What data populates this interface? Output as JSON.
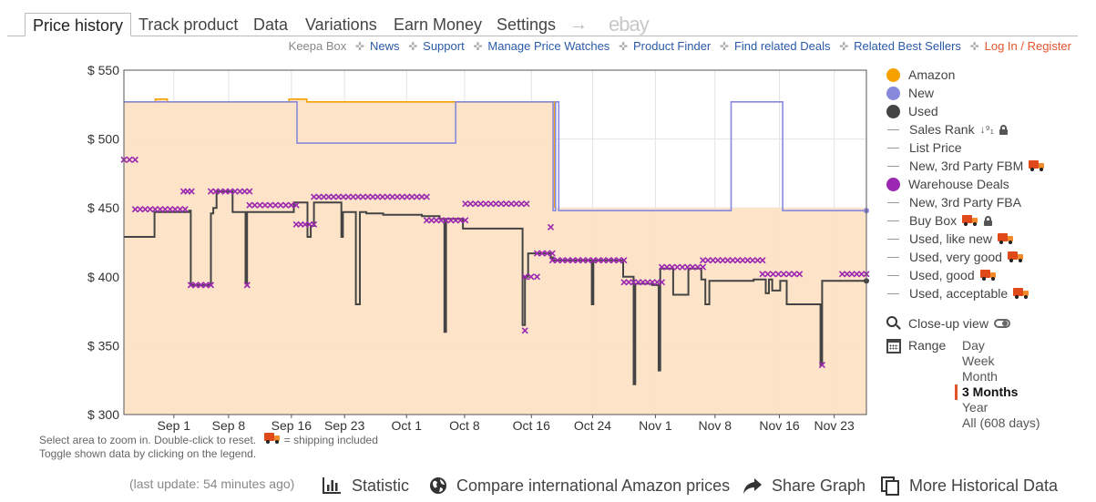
{
  "tabs": [
    "Price history",
    "Track product",
    "Data",
    "Variations",
    "Earn Money",
    "Settings"
  ],
  "tab_arrow": "→",
  "tab_ebay": "ebay",
  "subnav": {
    "keepa_box": "Keepa Box",
    "links": [
      "News",
      "Support",
      "Manage Price Watches",
      "Product Finder",
      "Find related Deals",
      "Related Best Sellers"
    ],
    "login": "Log In / Register"
  },
  "hints": {
    "line1_a": "Select area to zoom in. Double-click to reset.",
    "line1_b": "= shipping included",
    "line2": "Toggle shown data by clicking on the legend."
  },
  "legend": {
    "items": [
      {
        "label": "Amazon",
        "kind": "dot",
        "color": "#f5a200"
      },
      {
        "label": "New",
        "kind": "dot",
        "color": "#8888dd"
      },
      {
        "label": "Used",
        "kind": "dot",
        "color": "#444444"
      },
      {
        "label": "Sales Rank",
        "kind": "line",
        "sort": true,
        "lock": true
      },
      {
        "label": "List Price",
        "kind": "line"
      },
      {
        "label": "New, 3rd Party FBM",
        "kind": "line",
        "truck": true
      },
      {
        "label": "Warehouse Deals",
        "kind": "dot",
        "color": "#9c27b0"
      },
      {
        "label": "New, 3rd Party FBA",
        "kind": "line"
      },
      {
        "label": "Buy Box",
        "kind": "line",
        "truck": true,
        "lock": true
      },
      {
        "label": "Used, like new",
        "kind": "line",
        "truck": true
      },
      {
        "label": "Used, very good",
        "kind": "line",
        "truck": true
      },
      {
        "label": "Used, good",
        "kind": "line",
        "truck": true
      },
      {
        "label": "Used, acceptable",
        "kind": "line",
        "truck": true
      }
    ]
  },
  "closeup_label": "Close-up view",
  "range": {
    "label": "Range",
    "options": [
      "Day",
      "Week",
      "Month",
      "3 Months",
      "Year",
      "All (608 days)"
    ],
    "active": "3 Months"
  },
  "footer": {
    "last_update": "(last update: 54 minutes ago)",
    "statistic": "Statistic",
    "compare": "Compare international Amazon prices",
    "share": "Share Graph",
    "more": "More Historical Data"
  },
  "chart_data": {
    "type": "line",
    "y_ticks": [
      "$ 550",
      "$ 500",
      "$ 450",
      "$ 400",
      "$ 350",
      "$ 300"
    ],
    "ylim": [
      300,
      550
    ],
    "x_ticks": [
      "Sep 1",
      "Sep 8",
      "Sep 16",
      "Sep 23",
      "Oct 1",
      "Oct 8",
      "Oct 16",
      "Oct 24",
      "Nov 1",
      "Nov 8",
      "Nov 16",
      "Nov 23"
    ],
    "x_tick_days": [
      6.2,
      13,
      20.8,
      27.4,
      35.1,
      42.3,
      50.6,
      58.2,
      66,
      73.4,
      81.4,
      88.2
    ],
    "xlim": [
      0,
      92.2
    ],
    "grid": true,
    "series": [
      {
        "name": "Amazon",
        "color": "#f5a200",
        "fill": "#fde3c6",
        "points": [
          [
            0,
            527
          ],
          [
            3.9,
            527
          ],
          [
            3.9,
            529
          ],
          [
            5.4,
            529
          ],
          [
            5.4,
            527
          ],
          [
            20.5,
            527
          ],
          [
            20.5,
            529
          ],
          [
            22.7,
            529
          ],
          [
            22.7,
            527
          ],
          [
            53.5,
            527
          ],
          [
            53.5,
            450
          ]
        ]
      },
      {
        "name": "New",
        "color": "#8888dd",
        "points": [
          [
            0,
            527
          ],
          [
            21.5,
            527
          ],
          [
            21.5,
            497
          ],
          [
            41.2,
            497
          ],
          [
            41.2,
            527
          ],
          [
            53.3,
            527
          ],
          [
            53.3,
            448
          ],
          [
            53.6,
            448
          ],
          [
            53.6,
            527
          ],
          [
            54,
            527
          ],
          [
            54,
            448
          ],
          [
            75.4,
            448
          ],
          [
            75.4,
            527
          ],
          [
            81.8,
            527
          ],
          [
            81.8,
            448
          ],
          [
            92.2,
            448
          ]
        ]
      },
      {
        "name": "Used",
        "color": "#444444",
        "points": [
          [
            0,
            429
          ],
          [
            3.8,
            429
          ],
          [
            3.8,
            447
          ],
          [
            8.1,
            447
          ],
          [
            8.1,
            448
          ],
          [
            8.3,
            448
          ],
          [
            8.3,
            394
          ],
          [
            10.8,
            394
          ],
          [
            10.8,
            446
          ],
          [
            11.1,
            446
          ],
          [
            11.1,
            450
          ],
          [
            11.5,
            450
          ],
          [
            11.5,
            462
          ],
          [
            13.5,
            462
          ],
          [
            13.5,
            447
          ],
          [
            15.1,
            447
          ],
          [
            15.1,
            395
          ],
          [
            15.3,
            395
          ],
          [
            15.3,
            447
          ],
          [
            21.1,
            447
          ],
          [
            21.1,
            454
          ],
          [
            22.8,
            454
          ],
          [
            22.8,
            429
          ],
          [
            23.2,
            429
          ],
          [
            23.2,
            437
          ],
          [
            23.6,
            437
          ],
          [
            23.6,
            454
          ],
          [
            27,
            454
          ],
          [
            27,
            429
          ],
          [
            27.2,
            429
          ],
          [
            27.2,
            447
          ],
          [
            28.8,
            447
          ],
          [
            28.8,
            380
          ],
          [
            29.3,
            380
          ],
          [
            29.3,
            447
          ],
          [
            30.1,
            447
          ],
          [
            30.1,
            446
          ],
          [
            32.2,
            446
          ],
          [
            32.2,
            445
          ],
          [
            37,
            445
          ],
          [
            37,
            444
          ],
          [
            39.2,
            444
          ],
          [
            39.2,
            442
          ],
          [
            39.8,
            442
          ],
          [
            39.8,
            360
          ],
          [
            40,
            360
          ],
          [
            40,
            442
          ],
          [
            42.1,
            442
          ],
          [
            42.1,
            435
          ],
          [
            49.5,
            435
          ],
          [
            49.5,
            365
          ],
          [
            49.8,
            365
          ],
          [
            49.8,
            400
          ],
          [
            50.2,
            400
          ],
          [
            50.2,
            417
          ],
          [
            53,
            417
          ],
          [
            53,
            414
          ],
          [
            53.3,
            414
          ],
          [
            53.3,
            412
          ],
          [
            58.1,
            412
          ],
          [
            58.1,
            380
          ],
          [
            58.3,
            380
          ],
          [
            58.3,
            412
          ],
          [
            62,
            412
          ],
          [
            62,
            400
          ],
          [
            63.3,
            400
          ],
          [
            63.3,
            322
          ],
          [
            63.5,
            322
          ],
          [
            63.5,
            395
          ],
          [
            65.6,
            395
          ],
          [
            65.6,
            394
          ],
          [
            66.4,
            394
          ],
          [
            66.4,
            332
          ],
          [
            66.6,
            332
          ],
          [
            66.6,
            406
          ],
          [
            68.2,
            406
          ],
          [
            68.2,
            387
          ],
          [
            70.1,
            387
          ],
          [
            70.1,
            406
          ],
          [
            71.7,
            406
          ],
          [
            71.7,
            398
          ],
          [
            72.2,
            398
          ],
          [
            72.2,
            380
          ],
          [
            72.7,
            380
          ],
          [
            72.7,
            397
          ],
          [
            78.2,
            397
          ],
          [
            78.2,
            398
          ],
          [
            79.7,
            398
          ],
          [
            79.7,
            388
          ],
          [
            80.1,
            388
          ],
          [
            80.1,
            398
          ],
          [
            80.5,
            398
          ],
          [
            80.5,
            390
          ],
          [
            81.5,
            390
          ],
          [
            81.5,
            397
          ],
          [
            82.3,
            397
          ],
          [
            82.3,
            380
          ],
          [
            86.5,
            380
          ],
          [
            86.5,
            336
          ],
          [
            86.7,
            336
          ],
          [
            86.7,
            397
          ],
          [
            92.2,
            397
          ]
        ]
      },
      {
        "name": "Warehouse Deals",
        "color": "#9c27b0",
        "segments": [
          [
            0,
            1.4,
            485
          ],
          [
            1.4,
            7.6,
            449
          ],
          [
            7.4,
            8.4,
            462
          ],
          [
            8.3,
            10.8,
            394
          ],
          [
            10.8,
            15.6,
            462
          ],
          [
            15.3,
            15.3,
            394
          ],
          [
            15.6,
            21.4,
            452
          ],
          [
            21.4,
            23.6,
            438
          ],
          [
            23.6,
            37.6,
            458
          ],
          [
            37.6,
            42.4,
            441
          ],
          [
            42.4,
            50,
            453
          ],
          [
            49.8,
            49.8,
            361
          ],
          [
            49.8,
            51.3,
            400
          ],
          [
            51.3,
            53.2,
            417
          ],
          [
            53,
            53,
            436
          ],
          [
            53.2,
            62.1,
            412
          ],
          [
            62.1,
            66.8,
            396
          ],
          [
            66.8,
            71.9,
            407
          ],
          [
            71.9,
            79.3,
            412
          ],
          [
            79.3,
            83.9,
            402
          ],
          [
            86.7,
            86.7,
            336
          ],
          [
            89.2,
            92.2,
            402
          ]
        ]
      }
    ]
  }
}
